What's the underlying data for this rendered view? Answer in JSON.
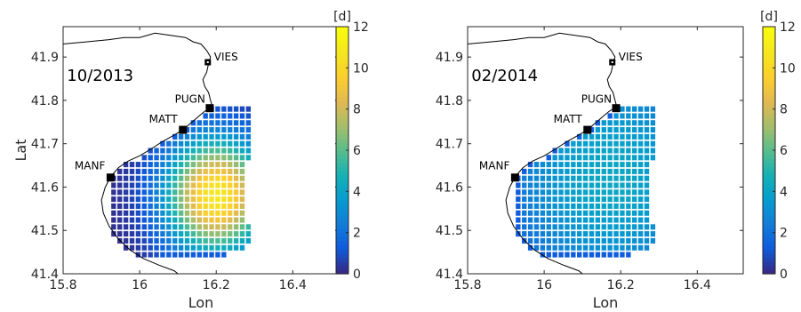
{
  "chart_data": [
    {
      "type": "heatmap",
      "title": "",
      "annotation": "10/2013",
      "xlabel": "Lon",
      "ylabel": "Lat",
      "xlim": [
        15.8,
        16.52
      ],
      "ylim": [
        41.4,
        41.97
      ],
      "xticks": [
        "15.8",
        "16",
        "16.2",
        "16.4"
      ],
      "yticks": [
        "41.4",
        "41.5",
        "41.6",
        "41.7",
        "41.8",
        "41.9"
      ],
      "colorbar": {
        "unit": "[d]",
        "min": 0,
        "max": 12,
        "ticks": [
          "0",
          "2",
          "4",
          "6",
          "8",
          "10",
          "12"
        ],
        "colormap": "parula"
      },
      "field": {
        "center_lon": 16.2,
        "center_lat": 41.58,
        "peak": 11,
        "radius_lon": 0.13,
        "radius_lat": 0.13
      },
      "stations": [
        {
          "name": "VIES",
          "lon": 16.178,
          "lat": 41.888
        },
        {
          "name": "PUGN",
          "lon": 16.183,
          "lat": 41.782
        },
        {
          "name": "MATT",
          "lon": 16.113,
          "lat": 41.732
        },
        {
          "name": "MANF",
          "lon": 15.924,
          "lat": 41.622
        }
      ]
    },
    {
      "type": "heatmap",
      "title": "",
      "annotation": "02/2014",
      "xlabel": "Lon",
      "ylabel": "",
      "xlim": [
        15.8,
        16.52
      ],
      "ylim": [
        41.4,
        41.97
      ],
      "xticks": [
        "15.8",
        "16",
        "16.2",
        "16.4"
      ],
      "yticks": [
        "41.4",
        "41.5",
        "41.6",
        "41.7",
        "41.8",
        "41.9"
      ],
      "colorbar": {
        "unit": "[d]",
        "min": 0,
        "max": 12,
        "ticks": [
          "0",
          "2",
          "4",
          "6",
          "8",
          "10",
          "12"
        ],
        "colormap": "parula"
      },
      "field": {
        "center_lon": 16.17,
        "center_lat": 41.62,
        "peak": 4.2,
        "radius_lon": 0.3,
        "radius_lat": 0.3
      },
      "stations": [
        {
          "name": "VIES",
          "lon": 16.178,
          "lat": 41.888
        },
        {
          "name": "PUGN",
          "lon": 16.188,
          "lat": 41.782
        },
        {
          "name": "MATT",
          "lon": 16.113,
          "lat": 41.732
        },
        {
          "name": "MANF",
          "lon": 15.924,
          "lat": 41.622
        }
      ]
    }
  ],
  "colors": {
    "text": "#262626",
    "coast": "#000000",
    "marker": "#000000"
  }
}
